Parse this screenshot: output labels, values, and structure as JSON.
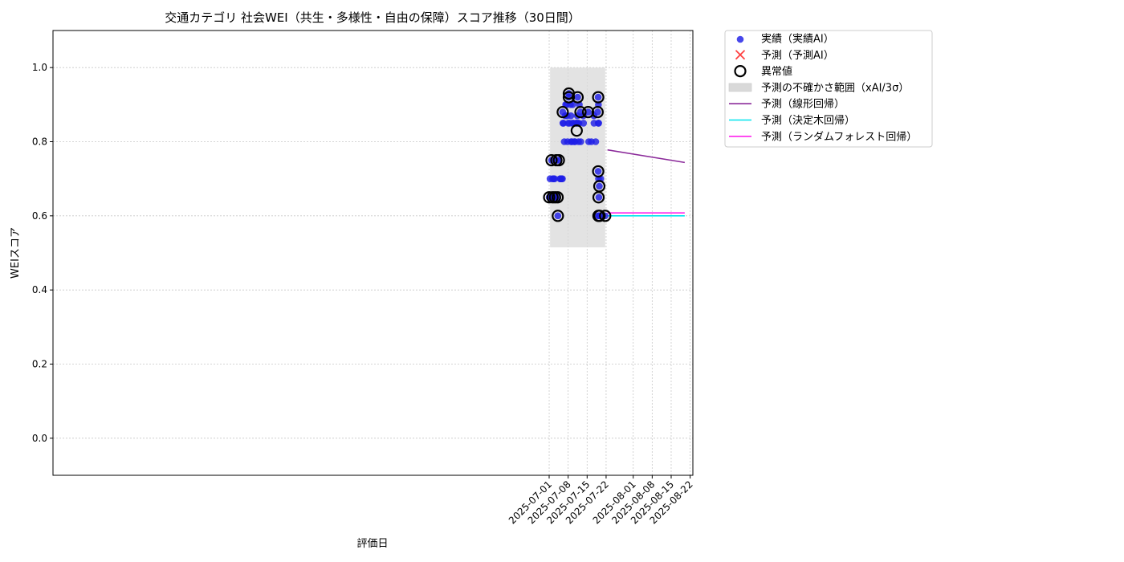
{
  "chart_data": {
    "type": "scatter",
    "title": "交通カテゴリ 社会WEI（共生・多様性・自由の保障）スコア推移（30日間）",
    "xlabel": "評価日",
    "ylabel": "WEIスコア",
    "x_range": [
      "2024-12-30",
      "2025-08-23"
    ],
    "ylim": [
      -0.1,
      1.1
    ],
    "y_ticks": [
      "0.0",
      "0.2",
      "0.4",
      "0.6",
      "0.8",
      "1.0"
    ],
    "x_ticks": [
      {
        "date": "2025-07-01",
        "label": "2025-07-01"
      },
      {
        "date": "2025-07-08",
        "label": "2025-07-08"
      },
      {
        "date": "2025-07-15",
        "label": "2025-07-15"
      },
      {
        "date": "2025-07-22",
        "label": "2025-07-22"
      },
      {
        "date": "2025-08-01",
        "label": "2025-08-01"
      },
      {
        "date": "2025-08-08",
        "label": "2025-08-08"
      },
      {
        "date": "2025-08-15",
        "label": "2025-08-15"
      },
      {
        "date": "2025-08-22",
        "label": "2025-08-22"
      }
    ],
    "grid": true,
    "legend_position": "outside-top-right",
    "colors": {
      "actual": "#1f1fe6",
      "predicted_marker": "#ff4040",
      "anomaly": "#000000",
      "uncertainty": "#d9d9d9",
      "linear": "#8b2a9a",
      "tree": "#00e5ee",
      "forest": "#ff22ee"
    },
    "legend": [
      {
        "key": "actual",
        "label": "実績（実績AI）"
      },
      {
        "key": "predicted",
        "label": "予測（予測AI）"
      },
      {
        "key": "anomaly",
        "label": "異常値"
      },
      {
        "key": "uncertainty",
        "label": "予測の不確かさ範囲（xAI/3σ）"
      },
      {
        "key": "linear",
        "label": "予測（線形回帰）"
      },
      {
        "key": "tree",
        "label": "予測（決定木回帰）"
      },
      {
        "key": "forest",
        "label": "予測（ランダムフォレスト回帰）"
      }
    ],
    "uncertainty_band": {
      "x0": "2025-07-01T08:00",
      "x1": "2025-07-21T16:00",
      "y0": 0.515,
      "y1": 1.0
    },
    "actual_points": [
      {
        "x": "2025-07-01T00:00",
        "y": 0.65
      },
      {
        "x": "2025-07-01T08:00",
        "y": 0.7
      },
      {
        "x": "2025-07-01T10:00",
        "y": 0.65
      },
      {
        "x": "2025-07-01T21:00",
        "y": 0.75
      },
      {
        "x": "2025-07-02T06:00",
        "y": 0.65
      },
      {
        "x": "2025-07-02T08:00",
        "y": 0.7
      },
      {
        "x": "2025-07-02T16:00",
        "y": 0.7
      },
      {
        "x": "2025-07-02T21:00",
        "y": 0.65
      },
      {
        "x": "2025-07-03T00:00",
        "y": 0.7
      },
      {
        "x": "2025-07-03T04:00",
        "y": 0.65
      },
      {
        "x": "2025-07-03T16:00",
        "y": 0.75
      },
      {
        "x": "2025-07-04T05:00",
        "y": 0.6
      },
      {
        "x": "2025-07-04T03:00",
        "y": 0.65
      },
      {
        "x": "2025-07-04T14:00",
        "y": 0.75
      },
      {
        "x": "2025-07-05T01:00",
        "y": 0.7
      },
      {
        "x": "2025-07-05T03:00",
        "y": 0.7
      },
      {
        "x": "2025-07-05T15:00",
        "y": 0.7
      },
      {
        "x": "2025-07-05T21:00",
        "y": 0.7
      },
      {
        "x": "2025-07-06T00:00",
        "y": 0.88
      },
      {
        "x": "2025-07-06T02:00",
        "y": 0.85
      },
      {
        "x": "2025-07-06T06:00",
        "y": 0.85
      },
      {
        "x": "2025-07-06T14:00",
        "y": 0.8
      },
      {
        "x": "2025-07-06T22:00",
        "y": 0.87
      },
      {
        "x": "2025-07-07T02:00",
        "y": 0.9
      },
      {
        "x": "2025-07-07T09:00",
        "y": 0.9
      },
      {
        "x": "2025-07-07T14:00",
        "y": 0.87
      },
      {
        "x": "2025-07-07T19:00",
        "y": 0.8
      },
      {
        "x": "2025-07-08T00:00",
        "y": 0.85
      },
      {
        "x": "2025-07-08T04:00",
        "y": 0.92
      },
      {
        "x": "2025-07-08T06:00",
        "y": 0.93
      },
      {
        "x": "2025-07-08T11:00",
        "y": 0.85
      },
      {
        "x": "2025-07-08T20:00",
        "y": 0.9
      },
      {
        "x": "2025-07-09T00:00",
        "y": 0.87
      },
      {
        "x": "2025-07-09T02:00",
        "y": 0.8
      },
      {
        "x": "2025-07-09T09:00",
        "y": 0.8
      },
      {
        "x": "2025-07-09T14:00",
        "y": 0.85
      },
      {
        "x": "2025-07-09T16:00",
        "y": 0.9
      },
      {
        "x": "2025-07-10T00:00",
        "y": 0.85
      },
      {
        "x": "2025-07-10T06:00",
        "y": 0.8
      },
      {
        "x": "2025-07-10T13:00",
        "y": 0.8
      },
      {
        "x": "2025-07-10T21:00",
        "y": 0.85
      },
      {
        "x": "2025-07-11T04:00",
        "y": 0.85
      },
      {
        "x": "2025-07-11T09:00",
        "y": 0.87
      },
      {
        "x": "2025-07-11T12:00",
        "y": 0.92
      },
      {
        "x": "2025-07-11T15:00",
        "y": 0.85
      },
      {
        "x": "2025-07-11T20:00",
        "y": 0.8
      },
      {
        "x": "2025-07-11T23:00",
        "y": 0.85
      },
      {
        "x": "2025-07-12T03:00",
        "y": 0.9
      },
      {
        "x": "2025-07-12T13:00",
        "y": 0.88
      },
      {
        "x": "2025-07-12T16:00",
        "y": 0.8
      },
      {
        "x": "2025-07-13T14:00",
        "y": 0.87
      },
      {
        "x": "2025-07-13T16:00",
        "y": 0.85
      },
      {
        "x": "2025-07-15T09:00",
        "y": 0.88
      },
      {
        "x": "2025-07-15T14:00",
        "y": 0.8
      },
      {
        "x": "2025-07-16T14:00",
        "y": 0.8
      },
      {
        "x": "2025-07-17T12:00",
        "y": 0.87
      },
      {
        "x": "2025-07-17T13:00",
        "y": 0.85
      },
      {
        "x": "2025-07-18T04:00",
        "y": 0.8
      },
      {
        "x": "2025-07-18T21:00",
        "y": 0.88
      },
      {
        "x": "2025-07-19T02:00",
        "y": 0.92
      },
      {
        "x": "2025-07-19T04:00",
        "y": 0.9
      },
      {
        "x": "2025-07-19T02:00",
        "y": 0.72
      },
      {
        "x": "2025-07-19T03:00",
        "y": 0.85
      },
      {
        "x": "2025-07-19T06:00",
        "y": 0.85
      },
      {
        "x": "2025-07-19T05:00",
        "y": 0.7
      },
      {
        "x": "2025-07-19T08:00",
        "y": 0.65
      },
      {
        "x": "2025-07-19T12:00",
        "y": 0.68
      },
      {
        "x": "2025-07-19T10:00",
        "y": 0.6
      },
      {
        "x": "2025-07-19T14:00",
        "y": 0.6
      },
      {
        "x": "2025-07-20T00:00",
        "y": 0.7
      },
      {
        "x": "2025-07-19T04:00",
        "y": 0.6
      },
      {
        "x": "2025-07-21T16:00",
        "y": 0.6
      }
    ],
    "anomaly_points": [
      {
        "x": "2025-07-01T00:00",
        "y": 0.65
      },
      {
        "x": "2025-07-01T21:00",
        "y": 0.75
      },
      {
        "x": "2025-07-02T06:00",
        "y": 0.65
      },
      {
        "x": "2025-07-03T04:00",
        "y": 0.65
      },
      {
        "x": "2025-07-03T16:00",
        "y": 0.75
      },
      {
        "x": "2025-07-04T03:00",
        "y": 0.65
      },
      {
        "x": "2025-07-04T05:00",
        "y": 0.6
      },
      {
        "x": "2025-07-04T14:00",
        "y": 0.75
      },
      {
        "x": "2025-07-06T00:00",
        "y": 0.88
      },
      {
        "x": "2025-07-08T06:00",
        "y": 0.93
      },
      {
        "x": "2025-07-08T06:00",
        "y": 0.92
      },
      {
        "x": "2025-07-11T04:00",
        "y": 0.83
      },
      {
        "x": "2025-07-11T12:00",
        "y": 0.92
      },
      {
        "x": "2025-07-12T13:00",
        "y": 0.88
      },
      {
        "x": "2025-07-15T09:00",
        "y": 0.88
      },
      {
        "x": "2025-07-18T21:00",
        "y": 0.88
      },
      {
        "x": "2025-07-19T02:00",
        "y": 0.92
      },
      {
        "x": "2025-07-19T02:00",
        "y": 0.72
      },
      {
        "x": "2025-07-19T05:00",
        "y": 0.65
      },
      {
        "x": "2025-07-19T12:00",
        "y": 0.68
      },
      {
        "x": "2025-07-19T04:00",
        "y": 0.6
      },
      {
        "x": "2025-07-19T14:00",
        "y": 0.6
      },
      {
        "x": "2025-07-21T16:00",
        "y": 0.6
      }
    ],
    "series": [
      {
        "key": "linear",
        "x": [
          "2025-07-22T12:00",
          "2025-08-20T00:00"
        ],
        "values": [
          0.778,
          0.744
        ]
      },
      {
        "key": "tree",
        "x": [
          "2025-07-22T12:00",
          "2025-08-20T00:00"
        ],
        "values": [
          0.6,
          0.6
        ]
      },
      {
        "key": "forest",
        "x": [
          "2025-07-22T12:00",
          "2025-08-20T00:00"
        ],
        "values": [
          0.608,
          0.608
        ]
      }
    ]
  }
}
